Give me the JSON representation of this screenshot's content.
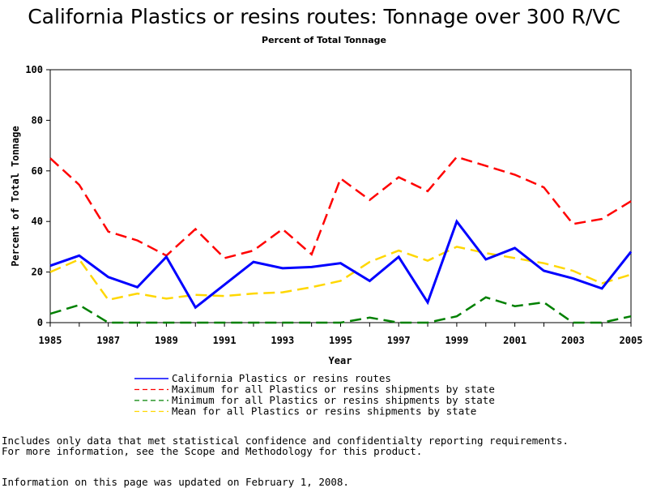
{
  "chart_data": {
    "type": "line",
    "title": "California Plastics or resins routes: Tonnage over 300 R/VC",
    "subtitle": "Percent of Total Tonnage",
    "xlabel": "Year",
    "ylabel": "Percent of Total Tonnage",
    "ylim": [
      0,
      100
    ],
    "xlim": [
      1985,
      2005
    ],
    "yticks": [
      "0",
      "20",
      "40",
      "60",
      "80",
      "100"
    ],
    "xticks": [
      "1985",
      "1987",
      "1989",
      "1991",
      "1993",
      "1995",
      "1997",
      "1999",
      "2001",
      "2003",
      "2005"
    ],
    "x": [
      1985,
      1986,
      1987,
      1988,
      1989,
      1990,
      1991,
      1992,
      1993,
      1994,
      1995,
      1996,
      1997,
      1998,
      1999,
      2000,
      2001,
      2002,
      2003,
      2004,
      2005
    ],
    "series": [
      {
        "name": "California Plastics or resins routes",
        "color": "#0000ff",
        "dash": "solid",
        "values": [
          22.5,
          26.5,
          18,
          14,
          26,
          6,
          15,
          24,
          21.5,
          22,
          23.5,
          16.5,
          26,
          8,
          40,
          25,
          29.5,
          20.5,
          17.5,
          13.5,
          28
        ]
      },
      {
        "name": "Maximum for all Plastics or resins shipments by state",
        "color": "#ff0000",
        "dash": "dashed",
        "values": [
          65,
          54.5,
          36,
          32.5,
          26.5,
          37,
          25.5,
          28.5,
          37,
          27,
          57,
          48.5,
          57.5,
          52,
          65.5,
          62,
          58.5,
          53.5,
          39,
          41,
          48
        ]
      },
      {
        "name": "Minimum for all Plastics or resins shipments by state",
        "color": "#008000",
        "dash": "dashed",
        "values": [
          3.5,
          7,
          0,
          0,
          0,
          0,
          0,
          0,
          0,
          0,
          0,
          2,
          0,
          0,
          2.5,
          10,
          6.5,
          8,
          0,
          0,
          2.5
        ]
      },
      {
        "name": "Mean for all Plastics or resins shipments by state",
        "color": "#ffd700",
        "dash": "dashed",
        "values": [
          20,
          25,
          9,
          11.5,
          9.5,
          11,
          10.5,
          11.5,
          12,
          14,
          16.5,
          24,
          28.5,
          24.5,
          30,
          27.5,
          25.5,
          23.5,
          20.5,
          15.5,
          19
        ]
      }
    ],
    "grid": false,
    "legend_position": "bottom"
  },
  "notes": {
    "line1": "Includes only data that met statistical confidence and confidentialty reporting requirements.",
    "line2": "For more information, see the Scope and Methodology for this product.",
    "line3": "Information on this page was updated on February 1, 2008."
  }
}
